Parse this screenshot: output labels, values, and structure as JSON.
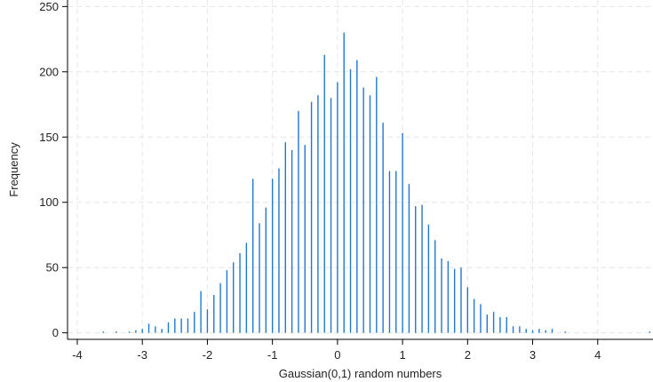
{
  "chart_data": {
    "type": "bar",
    "style": "spike",
    "title": "",
    "xlabel": "Gaussian(0,1) random numbers",
    "ylabel": "Frequency",
    "xlim": [
      -4.15,
      4.85
    ],
    "ylim": [
      -5,
      255
    ],
    "x_ticks": [
      -4,
      -3,
      -2,
      -1,
      0,
      1,
      2,
      3,
      4
    ],
    "y_ticks": [
      0,
      50,
      100,
      150,
      200,
      250
    ],
    "x_tick_labels": [
      "-4",
      "-3",
      "-2",
      "-1",
      "0",
      "1",
      "2",
      "3",
      "4"
    ],
    "y_tick_labels": [
      "0",
      "50",
      "100",
      "150",
      "200",
      "250"
    ],
    "grid": true,
    "color": "#1f78d1",
    "points": [
      [
        -3.6,
        1
      ],
      [
        -3.4,
        1
      ],
      [
        -3.2,
        1
      ],
      [
        -3.1,
        2
      ],
      [
        -3.0,
        3
      ],
      [
        -2.9,
        7
      ],
      [
        -2.8,
        5
      ],
      [
        -2.7,
        3
      ],
      [
        -2.6,
        8
      ],
      [
        -2.5,
        11
      ],
      [
        -2.4,
        11
      ],
      [
        -2.3,
        11
      ],
      [
        -2.2,
        16
      ],
      [
        -2.1,
        32
      ],
      [
        -2.0,
        18
      ],
      [
        -1.9,
        29
      ],
      [
        -1.8,
        38
      ],
      [
        -1.7,
        48
      ],
      [
        -1.6,
        54
      ],
      [
        -1.5,
        61
      ],
      [
        -1.4,
        69
      ],
      [
        -1.3,
        118
      ],
      [
        -1.2,
        84
      ],
      [
        -1.1,
        96
      ],
      [
        -1.0,
        118
      ],
      [
        -0.9,
        126
      ],
      [
        -0.8,
        146
      ],
      [
        -0.7,
        140
      ],
      [
        -0.6,
        170
      ],
      [
        -0.5,
        144
      ],
      [
        -0.4,
        177
      ],
      [
        -0.3,
        182
      ],
      [
        -0.2,
        213
      ],
      [
        -0.1,
        180
      ],
      [
        0.0,
        192
      ],
      [
        0.1,
        230
      ],
      [
        0.2,
        202
      ],
      [
        0.3,
        209
      ],
      [
        0.4,
        188
      ],
      [
        0.5,
        182
      ],
      [
        0.6,
        196
      ],
      [
        0.7,
        161
      ],
      [
        0.8,
        124
      ],
      [
        0.9,
        124
      ],
      [
        1.0,
        153
      ],
      [
        1.1,
        114
      ],
      [
        1.2,
        97
      ],
      [
        1.3,
        98
      ],
      [
        1.4,
        83
      ],
      [
        1.5,
        71
      ],
      [
        1.6,
        57
      ],
      [
        1.7,
        55
      ],
      [
        1.8,
        49
      ],
      [
        1.9,
        50
      ],
      [
        2.0,
        35
      ],
      [
        2.1,
        26
      ],
      [
        2.2,
        22
      ],
      [
        2.3,
        14
      ],
      [
        2.4,
        16
      ],
      [
        2.5,
        12
      ],
      [
        2.6,
        12
      ],
      [
        2.7,
        5
      ],
      [
        2.8,
        5
      ],
      [
        2.9,
        3
      ],
      [
        3.0,
        2
      ],
      [
        3.1,
        3
      ],
      [
        3.2,
        2
      ],
      [
        3.3,
        3
      ],
      [
        3.5,
        1
      ],
      [
        4.8,
        1
      ]
    ]
  }
}
